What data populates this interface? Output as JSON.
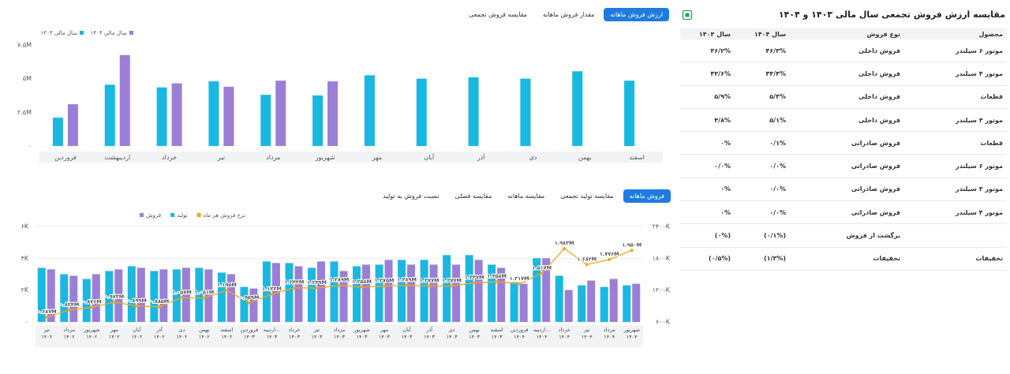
{
  "tabs": {
    "top": {
      "items": [
        "ارزش فروش ماهانه",
        "مقدار فروش ماهانه",
        "مقایسه فروش تجمعی"
      ],
      "active": 0
    },
    "bottom": {
      "items": [
        "فروش ماهانه",
        "مقایسه تولید تجمعی",
        "مقایسه ماهانه",
        "مقایسه فصلی",
        "نسبت فروش به تولید"
      ],
      "active": 0
    }
  },
  "chart_data": [
    {
      "type": "bar",
      "categories": [
        "فروردین",
        "اردیبهشت",
        "خرداد",
        "تیر",
        "مرداد",
        "شهریور",
        "مهر",
        "آبان",
        "آذر",
        "دی",
        "بهمن",
        "اسفند"
      ],
      "series": [
        {
          "name": "سال مالی ۱۴۰۳",
          "color": "#1ab8e0",
          "values": [
            2.1,
            4.55,
            4.35,
            4.8,
            3.8,
            3.75,
            5.25,
            5.0,
            5.1,
            5.0,
            5.55,
            4.85
          ]
        },
        {
          "name": "سال مالی ۱۴۰۴",
          "color": "#9b7fd6",
          "values": [
            3.1,
            6.75,
            4.65,
            4.4,
            4.85,
            4.8,
            null,
            null,
            null,
            null,
            null,
            null
          ]
        }
      ],
      "ylim": [
        0,
        7.5
      ],
      "yticks": [
        {
          "value": 0,
          "label": "۰"
        },
        {
          "value": 2.5,
          "label": "۲.۵M"
        },
        {
          "value": 5,
          "label": "۵M"
        },
        {
          "value": 7.5,
          "label": "۷.۵M"
        }
      ]
    },
    {
      "type": "bar",
      "categories": [
        "تیر\n۱۴۰۲",
        "مرداد\n۱۴۰۲",
        "شهریور\n۱۴۰۲",
        "مهر\n۱۴۰۲",
        "آبان\n۱۴۰۲",
        "آذر\n۱۴۰۲",
        "دی\n۱۴۰۲",
        "بهمن\n۱۴۰۲",
        "اسفند\n۱۴۰۲",
        "فروردین\n۱۴۰۳",
        "اردیبه...\n۱۴۰۳",
        "خرداد\n۱۴۰۳",
        "تیر\n۱۴۰۳",
        "مرداد\n۱۴۰۳",
        "شهریور\n۱۴۰۳",
        "مهر\n۱۴۰۳",
        "آبان\n۱۴۰۳",
        "آذر\n۱۴۰۳",
        "دی\n۱۴۰۳",
        "بهمن\n۱۴۰۳",
        "اسفند\n۱۴۰۳",
        "فروردین\n۱۴۰۴",
        "اردیبه...\n۱۴۰۴",
        "خرداد\n۱۴۰۴",
        "تیر\n۱۴۰۴",
        "مرداد\n۱۴۰۴",
        "شهریور\n۱۴۰۴"
      ],
      "series": [
        {
          "name": "فروش",
          "color": "#9b7fd6",
          "type": "bar",
          "values": [
            3.3,
            2.9,
            3.0,
            3.3,
            3.4,
            3.3,
            3.4,
            3.3,
            3.0,
            2.1,
            3.7,
            3.5,
            3.8,
            3.2,
            3.6,
            3.9,
            3.6,
            3.6,
            3.6,
            3.9,
            3.4,
            2.4,
            4.0,
            2.0,
            2.6,
            2.7,
            2.4
          ]
        },
        {
          "name": "تولید",
          "color": "#1ab8e0",
          "type": "bar",
          "values": [
            3.4,
            3.0,
            2.7,
            3.2,
            3.5,
            3.2,
            3.3,
            3.4,
            3.1,
            2.2,
            3.8,
            3.7,
            3.4,
            3.8,
            3.5,
            3.6,
            3.9,
            3.9,
            4.2,
            4.2,
            3.6,
            2.5,
            4.0,
            2.9,
            2.3,
            2.2,
            2.3
          ]
        },
        {
          "name": "نرخ فروش هر ماه",
          "color": "#f5a623",
          "type": "line",
          "axis": "y2",
          "values": [
            687,
            824,
            876,
            973,
            899,
            885,
            1057,
            1051,
            1195,
            959,
            1122,
            1244,
            1239,
            1289,
            1258,
            1275,
            1289,
            1277,
            1277,
            1337,
            1358,
            1317,
            1517,
            1983,
            1682,
            1776,
            1950
          ],
          "value_labels": [
            "۰.۶۸۷M",
            "۰.۸۲۴M",
            "۰.۸۷۶M",
            "۰.۹۷۳M",
            "۰.۸۹۹M",
            "۰.۸۸۵M",
            "۱.۰۵۷M",
            "۱.۰۵۱M",
            "۱.۱۹۵M",
            "۰.۹۵۹M",
            "۱.۱۲۲M",
            "۱.۲۴۴M",
            "۱.۲۳۹M",
            "۱.۲۸۹M",
            "۱.۲۵۸M",
            "۱.۲۷۵M",
            "۱.۲۸۹M",
            "۱.۲۷۷M",
            "۱.۲۷۷M",
            "۱.۳۳۷M",
            "۱.۳۵۸M",
            "۱.۳۱۷M",
            "۱.۵۱۷M",
            "۱.۹۸۳M",
            "۱.۶۸۲M",
            "۱.۷۷۶M",
            "۱.۹۵۰M"
          ]
        }
      ],
      "ylim": [
        0,
        6
      ],
      "yticks": [
        {
          "value": 0,
          "label": "۰"
        },
        {
          "value": 2,
          "label": "۲K"
        },
        {
          "value": 4,
          "label": "۴K"
        },
        {
          "value": 6,
          "label": "۶K"
        }
      ],
      "y2lim": [
        600,
        2400
      ],
      "y2ticks": [
        {
          "value": 600,
          "label": "۶۰۰K"
        },
        {
          "value": 1200,
          "label": "۱۲۰۰K"
        },
        {
          "value": 1800,
          "label": "۱۸۰۰K"
        },
        {
          "value": 2400,
          "label": "۲۴۰۰K"
        }
      ],
      "grid": true
    }
  ],
  "table": {
    "title": "مقایسه ارزش فروش تجمعی سال مالی ۱۴۰۳ و ۱۴۰۴",
    "columns": [
      "محصول",
      "نوع فروش",
      "سال ۱۴۰۴",
      "سال ۱۴۰۳"
    ],
    "rows": [
      [
        "موتور ۶ سیلندر",
        "فروش داخلی",
        "۴۶/۳%",
        "۴۶/۲%"
      ],
      [
        "موتور ۴ سیلندر",
        "فروش داخلی",
        "۴۴/۴%",
        "۴۳/۶%"
      ],
      [
        "قطعات",
        "فروش داخلی",
        "۵/۴%",
        "۵/۹%"
      ],
      [
        "موتور ۳ سیلندر",
        "فروش داخلی",
        "۵/۱%",
        "۴/۸%"
      ],
      [
        "قطعات",
        "فروش صادراتی",
        "۰/۱%",
        "۰%"
      ],
      [
        "موتور ۶ سیلندر",
        "فروش صادراتی",
        "۰/۰%",
        "۰/۰%"
      ],
      [
        "موتور ۳ سیلندر",
        "فروش صادراتی",
        "۰/۰%",
        "۰%"
      ],
      [
        "موتور ۴ سیلندر",
        "فروش صادراتی",
        "۰/۰%",
        "۰%"
      ],
      [
        null,
        "برگشت از فروش",
        "(۰/۱%)",
        "(۰%)"
      ],
      [
        "تخفیفات",
        "تخفیفات",
        "(۱/۳%)",
        "(۰/۵%)"
      ]
    ]
  }
}
